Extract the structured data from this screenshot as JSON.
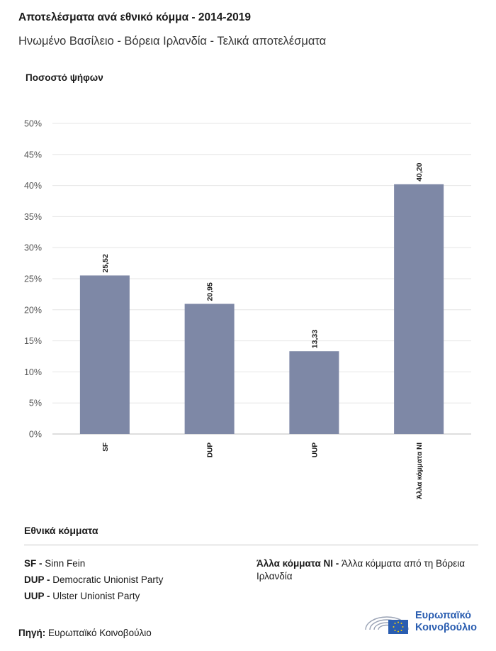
{
  "header": {
    "title": "Αποτελέσματα ανά εθνικό κόμμα - 2014-2019",
    "subtitle": "Ηνωμένο Βασίλειο - Βόρεια Ιρλανδία - Τελικά αποτελέσματα"
  },
  "chart_data": {
    "type": "bar",
    "ylabel": "Ποσοστό ψήφων",
    "categories": [
      "SF",
      "DUP",
      "UUP",
      "Άλλα κόμματα NI"
    ],
    "values": [
      25.52,
      20.95,
      13.33,
      40.2
    ],
    "value_labels": [
      "25,52",
      "20,95",
      "13,33",
      "40,20"
    ],
    "yticks": [
      "0%",
      "5%",
      "10%",
      "15%",
      "20%",
      "25%",
      "30%",
      "35%",
      "40%",
      "45%",
      "50%"
    ],
    "ylim": [
      0,
      50
    ],
    "grid": true,
    "bar_color": "#7e88a6"
  },
  "legend": {
    "title": "Εθνικά κόμματα",
    "entries": [
      {
        "abbr": "SF -",
        "name": "Sinn Fein"
      },
      {
        "abbr": "DUP -",
        "name": "Democratic Unionist Party"
      },
      {
        "abbr": "UUP -",
        "name": "Ulster Unionist Party"
      },
      {
        "abbr": "Άλλα κόμματα NI -",
        "name": "Άλλα κόμματα από τη Βόρεια Ιρλανδία"
      }
    ]
  },
  "source": {
    "label": "Πηγή:",
    "text": "Ευρωπαϊκό Κοινοβούλιο"
  },
  "logo": {
    "line1": "Ευρωπαϊκό",
    "line2": "Κοινοβούλιο",
    "color": "#2a5db0"
  }
}
